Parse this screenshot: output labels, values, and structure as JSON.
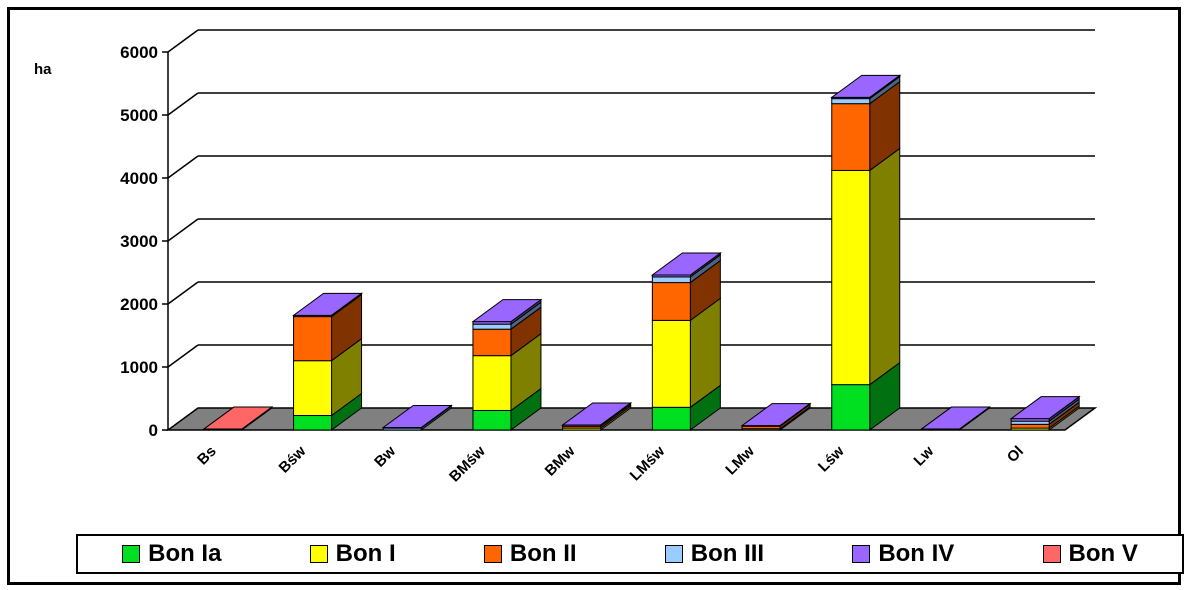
{
  "chart_data": {
    "type": "bar",
    "stacked": true,
    "three_d": true,
    "ylabel": "ha",
    "ylim": [
      0,
      6000
    ],
    "yticks": [
      0,
      1000,
      2000,
      3000,
      4000,
      5000,
      6000
    ],
    "grid": true,
    "legend_position": "bottom",
    "categories": [
      "Bs",
      "Bśw",
      "Bw",
      "BMśw",
      "BMw",
      "LMśw",
      "LMw",
      "Lśw",
      "Lw",
      "Ol"
    ],
    "series": [
      {
        "name": "Bon Ia",
        "color": "#00e020",
        "values": [
          0,
          230,
          0,
          310,
          0,
          360,
          0,
          720,
          0,
          0
        ]
      },
      {
        "name": "Bon I",
        "color": "#ffff00",
        "values": [
          0,
          870,
          0,
          870,
          30,
          1380,
          20,
          3400,
          0,
          30
        ]
      },
      {
        "name": "Bon II",
        "color": "#ff6600",
        "values": [
          0,
          700,
          0,
          420,
          30,
          600,
          40,
          1060,
          0,
          60
        ]
      },
      {
        "name": "Bon III",
        "color": "#99ccff",
        "values": [
          0,
          0,
          30,
          80,
          0,
          90,
          0,
          80,
          0,
          50
        ]
      },
      {
        "name": "Bon IV",
        "color": "#9966ff",
        "values": [
          0,
          20,
          10,
          40,
          20,
          30,
          10,
          20,
          15,
          40
        ]
      },
      {
        "name": "Bon V",
        "color": "#ff6666",
        "values": [
          15,
          0,
          0,
          0,
          0,
          0,
          0,
          0,
          0,
          0
        ]
      }
    ]
  }
}
